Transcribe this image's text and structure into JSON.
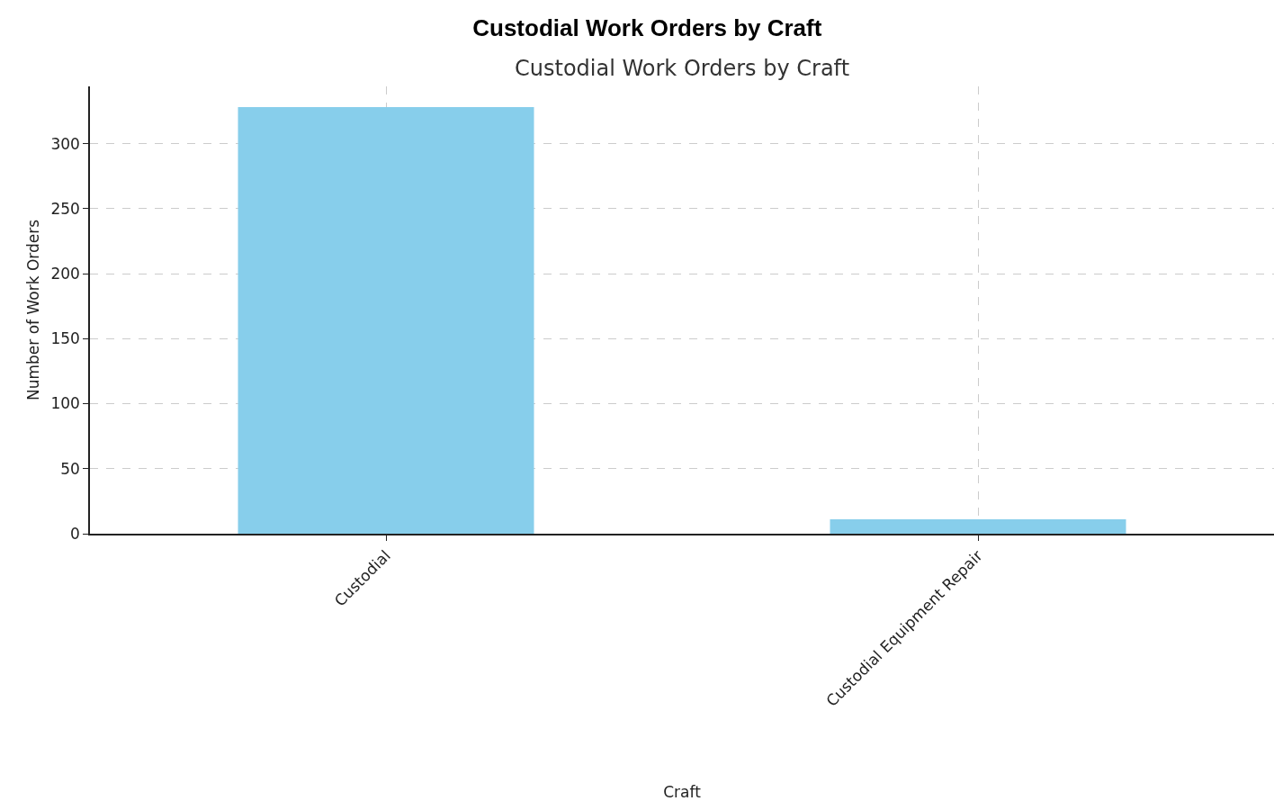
{
  "chart_data": {
    "type": "bar",
    "title": "Custodial Work Orders by Craft",
    "subtitle": "Custodial Work Orders by Craft",
    "xlabel": "Craft",
    "ylabel": "Number of Work Orders",
    "categories": [
      "Custodial",
      "Custodial Equipment Repair"
    ],
    "values": [
      328,
      11
    ],
    "color": "#87ceeb",
    "ylim": [
      0,
      344
    ],
    "yticks": [
      0,
      50,
      100,
      150,
      200,
      250,
      300
    ],
    "grid": true,
    "line_style": "dashed"
  }
}
